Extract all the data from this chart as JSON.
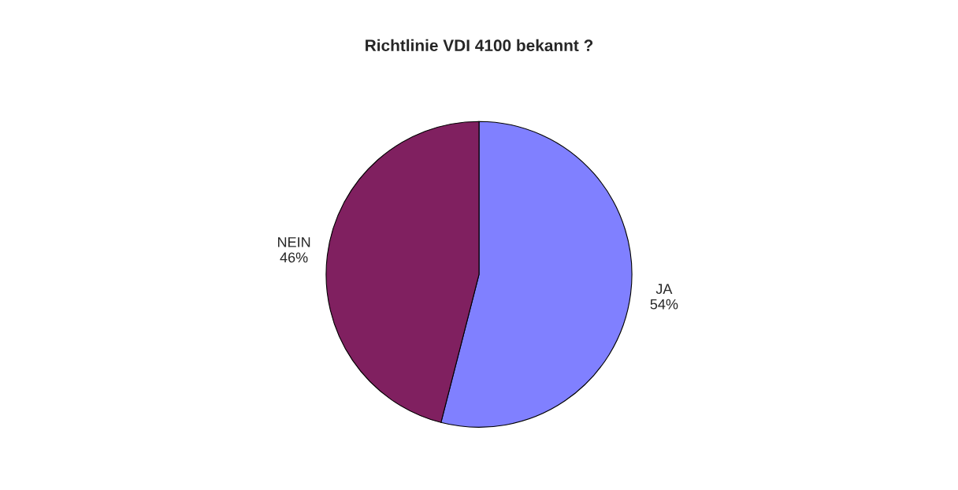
{
  "chart_data": {
    "type": "pie",
    "title": "Richtlinie VDI 4100 bekannt ?",
    "categories": [
      "JA",
      "NEIN"
    ],
    "values": [
      54,
      46
    ],
    "colors": [
      "#8080ff",
      "#802060"
    ],
    "value_labels": [
      "54%",
      "46%"
    ],
    "legend": false
  }
}
